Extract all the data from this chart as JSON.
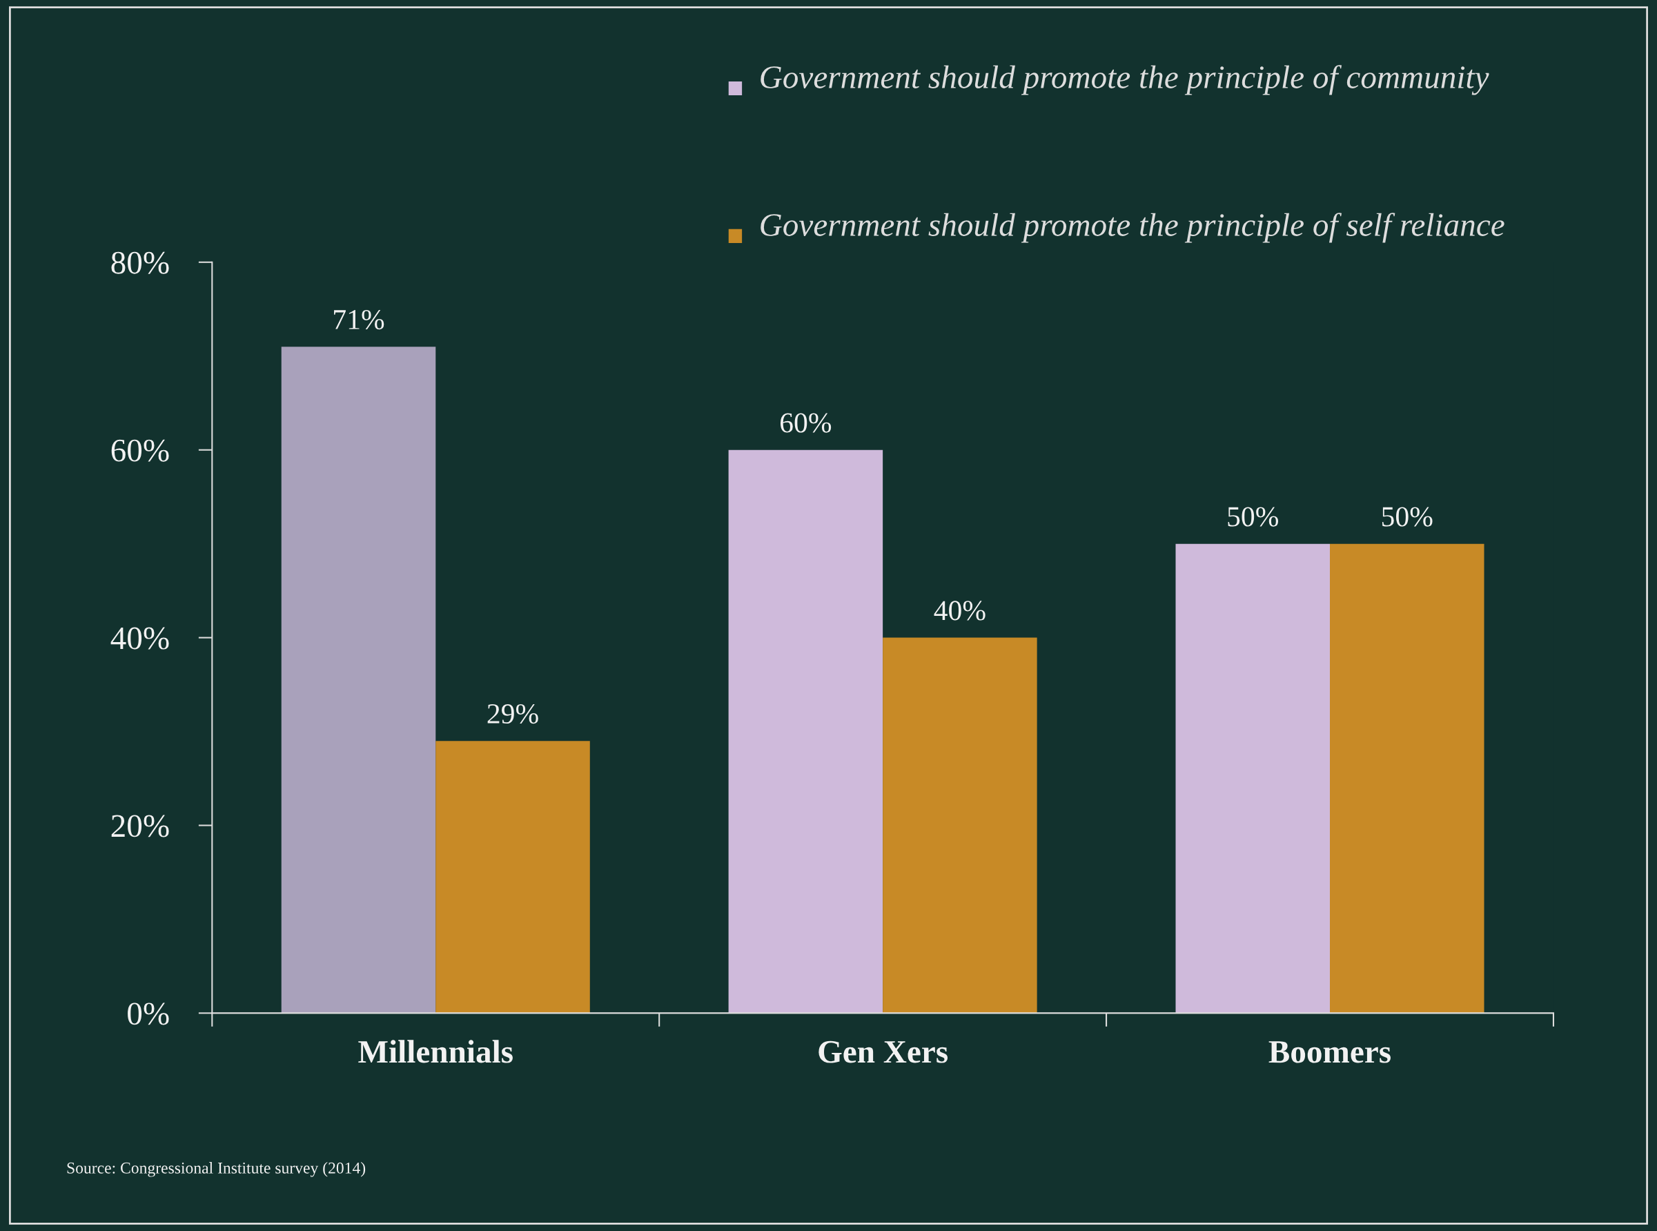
{
  "chart_data": {
    "type": "bar",
    "categories": [
      "Millennials",
      "Gen Xers",
      "Boomers"
    ],
    "series": [
      {
        "name": "Government should promote the principle of community",
        "color": "#cfbadb",
        "colors": [
          "#a9a1bb",
          "#cfbadb",
          "#cfbadb"
        ],
        "values": [
          71,
          60,
          50
        ],
        "value_labels": [
          "71%",
          "60%",
          "50%"
        ]
      },
      {
        "name": "Government should promote the principle of self reliance",
        "color": "#c88a26",
        "values": [
          29,
          40,
          50
        ],
        "value_labels": [
          "29%",
          "40%",
          "50%"
        ]
      }
    ],
    "ylim": [
      0,
      80
    ],
    "yticks": [
      {
        "value": 0,
        "label": "0%"
      },
      {
        "value": 20,
        "label": "20%"
      },
      {
        "value": 40,
        "label": "40%"
      },
      {
        "value": 60,
        "label": "60%"
      },
      {
        "value": 80,
        "label": "80%"
      }
    ],
    "grid": false,
    "legend": "top right",
    "annotations": [
      "Source: Congressional Institute survey (2014)"
    ]
  }
}
